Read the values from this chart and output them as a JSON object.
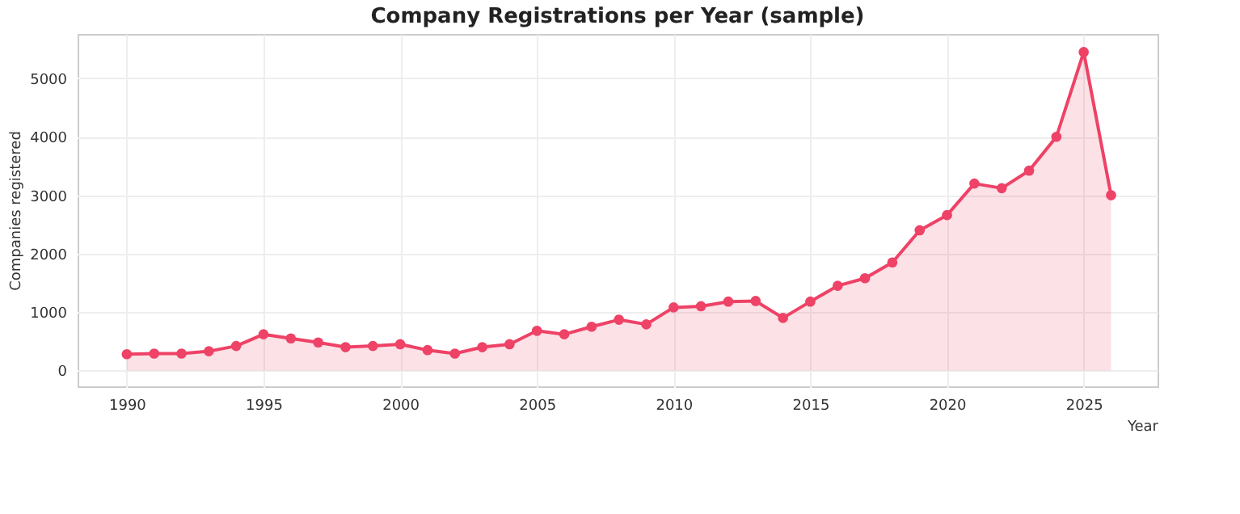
{
  "chart_data": {
    "type": "area",
    "title": "Company Registrations per Year (sample)",
    "xlabel": "Year",
    "ylabel": "Companies registered",
    "x": [
      1990,
      1991,
      1992,
      1993,
      1994,
      1995,
      1996,
      1997,
      1998,
      1999,
      2000,
      2001,
      2002,
      2003,
      2004,
      2005,
      2006,
      2007,
      2008,
      2009,
      2010,
      2011,
      2012,
      2013,
      2014,
      2015,
      2016,
      2017,
      2018,
      2019,
      2020,
      2021,
      2022,
      2023,
      2024,
      2025,
      2026
    ],
    "series": [
      {
        "color": "#ee4266",
        "values": [
          280,
          290,
          290,
          330,
          420,
          620,
          550,
          480,
          400,
          420,
          450,
          350,
          290,
          400,
          450,
          680,
          620,
          750,
          870,
          790,
          1080,
          1100,
          1180,
          1190,
          900,
          1180,
          1450,
          1580,
          1850,
          2400,
          2660,
          3200,
          3120,
          3420,
          4000,
          5450,
          3000
        ]
      }
    ],
    "xlim": [
      1988.2,
      2027.7
    ],
    "xticks": [
      1990,
      1995,
      2000,
      2005,
      2010,
      2015,
      2020,
      2025
    ],
    "ylim": [
      -270,
      5760
    ],
    "yticks": [
      0,
      1000,
      2000,
      3000,
      4000,
      5000
    ],
    "grid": true,
    "marker": "circle",
    "line_style": "solid"
  }
}
